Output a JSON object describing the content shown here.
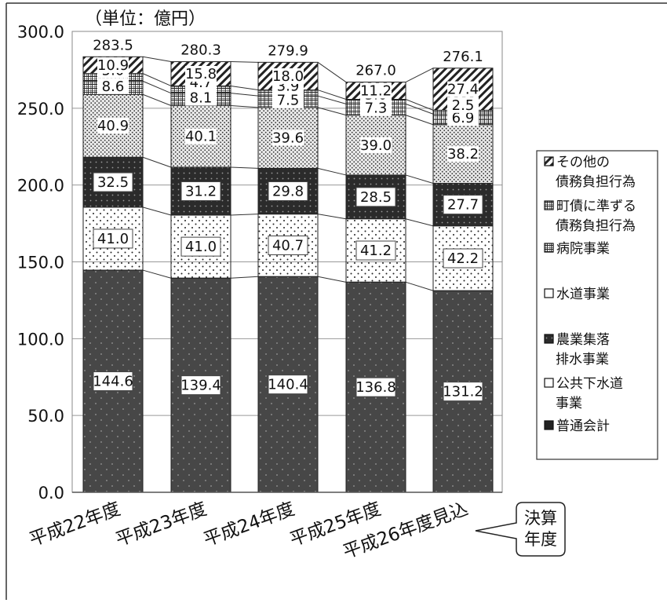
{
  "chart_data": {
    "type": "bar",
    "stacked": true,
    "unit_label": "（単位：億円）",
    "ylim": [
      0,
      300
    ],
    "y_ticks": [
      "0.0",
      "50.0",
      "100.0",
      "150.0",
      "200.0",
      "250.0",
      "300.0"
    ],
    "categories": [
      "平成22年度",
      "平成23年度",
      "平成24年度",
      "平成25年度",
      "平成26年度見込"
    ],
    "totals": [
      "283.5",
      "280.3",
      "279.9",
      "267.0",
      "276.1"
    ],
    "series": [
      {
        "name": "普通会計",
        "values": [
          144.6,
          139.4,
          140.4,
          136.8,
          131.2
        ],
        "labels": [
          "144.6",
          "139.4",
          "140.4",
          "136.8",
          "131.2"
        ]
      },
      {
        "name": "公共下水道事業",
        "values": [
          41.0,
          41.0,
          40.7,
          41.2,
          42.2
        ],
        "labels": [
          "41.0",
          "41.0",
          "40.7",
          "41.2",
          "42.2"
        ]
      },
      {
        "name": "農業集落排水事業",
        "values": [
          32.5,
          31.2,
          29.8,
          28.5,
          27.7
        ],
        "labels": [
          "32.5",
          "31.2",
          "29.8",
          "28.5",
          "27.7"
        ]
      },
      {
        "name": "水道事業",
        "values": [
          40.9,
          40.1,
          39.6,
          39.0,
          38.2
        ],
        "labels": [
          "40.9",
          "40.1",
          "39.6",
          "39.0",
          "38.2"
        ]
      },
      {
        "name": "病院事業",
        "values": [
          8.6,
          8.1,
          7.5,
          7.3,
          6.9
        ],
        "labels": [
          "8.6",
          "8.1",
          "7.5",
          "7.3",
          "6.9"
        ]
      },
      {
        "name": "町債に準ずる債務負担行為",
        "values": [
          5.0,
          4.7,
          3.9,
          3.0,
          2.5
        ],
        "labels": [
          "5.0",
          "4.7",
          "3.9",
          "3.0",
          "2.5"
        ]
      },
      {
        "name": "その他の債務負担行為",
        "values": [
          10.9,
          15.8,
          18.0,
          11.2,
          27.4
        ],
        "labels": [
          "10.9",
          "15.8",
          "18.0",
          "11.2",
          "27.4"
        ]
      }
    ],
    "legend": {
      "placement": "right",
      "items": [
        {
          "lines": [
            "その他の",
            "債務負担行為"
          ]
        },
        {
          "lines": [
            "町債に準ずる",
            "債務負担行為"
          ]
        },
        {
          "lines": [
            "病院事業"
          ]
        },
        {
          "lines": [
            "水道事業"
          ]
        },
        {
          "lines": [
            "農業集落",
            "排水事業"
          ]
        },
        {
          "lines": [
            "公共下水道",
            "事業"
          ]
        },
        {
          "lines": [
            "普通会計"
          ]
        }
      ]
    },
    "callout": {
      "lines": [
        "決算",
        "年度"
      ]
    },
    "grid": true
  },
  "colors": {
    "general": "#4a4a4a",
    "sewer": "#ffffff",
    "rural": "#2e2e2e",
    "water": "#e4e4e4",
    "hospital": "#ffffff",
    "quasi": "#ffffff",
    "other": "#ffffff",
    "grid": "#999999",
    "text": "#111111"
  }
}
